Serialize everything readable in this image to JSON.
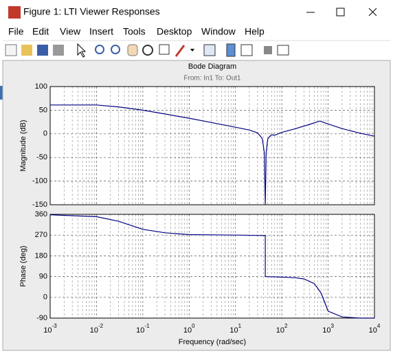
{
  "window": {
    "title": "Figure 1: LTI Viewer Responses",
    "menu": [
      "File",
      "Edit",
      "View",
      "Insert",
      "Tools",
      "Desktop",
      "Window",
      "Help"
    ]
  },
  "chart_data": [
    {
      "type": "line",
      "title": "Bode Diagram",
      "subtitle": "From: In1  To: Out1",
      "ylabel": "Magnitude (dB)",
      "xscale": "log",
      "grid": true,
      "color": "#000080",
      "x": [
        0.001,
        0.01,
        0.03,
        0.1,
        0.3,
        1,
        3,
        10,
        20,
        30,
        38,
        42,
        44,
        46,
        50,
        60,
        70,
        100,
        200,
        400,
        660,
        1000,
        2000,
        5000,
        10000
      ],
      "values": [
        61,
        61,
        57,
        50,
        42,
        33,
        24,
        14,
        8,
        2,
        -10,
        -40,
        -150,
        -40,
        -10,
        -2,
        -3,
        3,
        11,
        20,
        27,
        21,
        11,
        1,
        -5
      ],
      "xlim": [
        0.001,
        10000
      ],
      "xticks": [
        0.001,
        0.01,
        0.1,
        1,
        10,
        100,
        1000,
        10000
      ],
      "ylim": [
        -150,
        100
      ],
      "yticks": [
        -150,
        -100,
        -50,
        0,
        50,
        100
      ]
    },
    {
      "type": "line",
      "ylabel": "Phase (deg)",
      "xlabel": "Frequency  (rad/sec)",
      "xscale": "log",
      "grid": true,
      "color": "#000080",
      "x": [
        0.001,
        0.01,
        0.03,
        0.1,
        0.3,
        1,
        10,
        44,
        44,
        100,
        200,
        300,
        500,
        700,
        1000,
        2000,
        5000,
        10000
      ],
      "values": [
        358,
        350,
        330,
        295,
        280,
        272,
        270,
        268,
        90,
        88,
        85,
        80,
        60,
        20,
        -60,
        -85,
        -90,
        -90
      ],
      "xlim": [
        0.001,
        10000
      ],
      "xticks": [
        {
          "value": 0.001,
          "label": "10",
          "exponent": "-3"
        },
        {
          "value": 0.01,
          "label": "10",
          "exponent": "-2"
        },
        {
          "value": 0.1,
          "label": "10",
          "exponent": "-1"
        },
        {
          "value": 1,
          "label": "10",
          "exponent": "0"
        },
        {
          "value": 10,
          "label": "10",
          "exponent": "1"
        },
        {
          "value": 100,
          "label": "10",
          "exponent": "2"
        },
        {
          "value": 1000,
          "label": "10",
          "exponent": "3"
        },
        {
          "value": 10000,
          "label": "10",
          "exponent": "4"
        }
      ],
      "ylim": [
        -90,
        360
      ],
      "yticks": [
        -90,
        0,
        90,
        180,
        270,
        360
      ]
    }
  ]
}
